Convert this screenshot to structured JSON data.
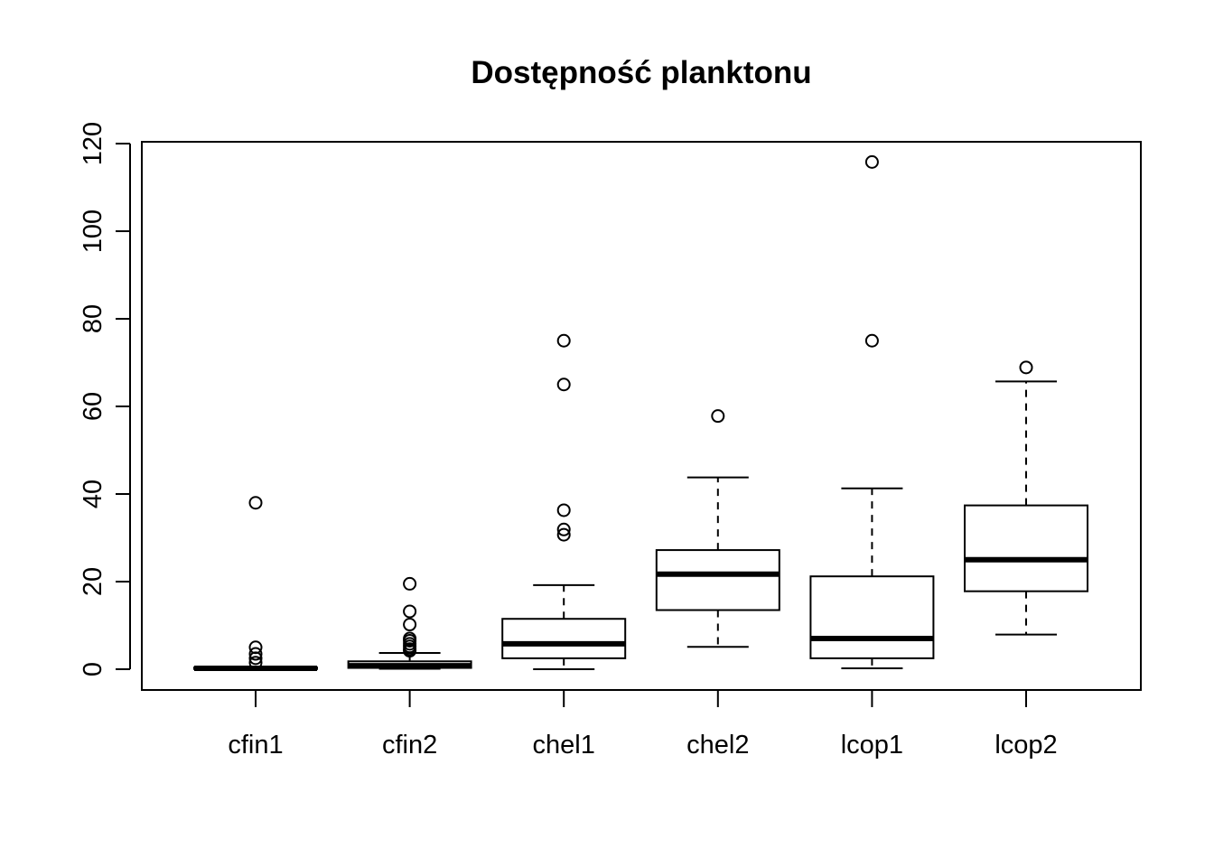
{
  "chart_data": {
    "type": "boxplot",
    "title": "Dostępność planktonu",
    "xlabel": "",
    "ylabel": "",
    "ylim": [
      -4.8,
      120
    ],
    "y_ticks": [
      "0",
      "20",
      "40",
      "60",
      "80",
      "100",
      "120"
    ],
    "grid": false,
    "legend": "none",
    "categories": [
      "cfin1",
      "cfin2",
      "chel1",
      "chel2",
      "lcop1",
      "lcop2"
    ],
    "series": [
      {
        "values": [
          {
            "whisker_low": 0,
            "q1": 0.05,
            "median": 0.2,
            "q3": 0.4,
            "whisker_high": 0.6,
            "outliers": [
              1.5,
              2.5,
              3.5,
              5,
              38
            ]
          },
          {
            "whisker_low": 0.1,
            "q1": 0.3,
            "median": 0.8,
            "q3": 1.8,
            "whisker_high": 3.7,
            "outliers": [
              4.2,
              4.6,
              5.2,
              5.8,
              6.5,
              7,
              10.2,
              13.2,
              19.5
            ]
          },
          {
            "whisker_low": 0,
            "q1": 2.5,
            "median": 5.8,
            "q3": 11.5,
            "whisker_high": 19.2,
            "outliers": [
              30.7,
              31.9,
              36.3,
              65,
              75
            ]
          },
          {
            "whisker_low": 5.1,
            "q1": 13.5,
            "median": 21.7,
            "q3": 27.2,
            "whisker_high": 43.8,
            "outliers": [
              57.8
            ]
          },
          {
            "whisker_low": 0.2,
            "q1": 2.5,
            "median": 7,
            "q3": 21.2,
            "whisker_high": 41.3,
            "outliers": [
              75,
              115.8
            ]
          },
          {
            "whisker_low": 7.9,
            "q1": 17.8,
            "median": 25,
            "q3": 37.4,
            "whisker_high": 65.7,
            "outliers": [
              68.9
            ]
          }
        ]
      }
    ]
  }
}
